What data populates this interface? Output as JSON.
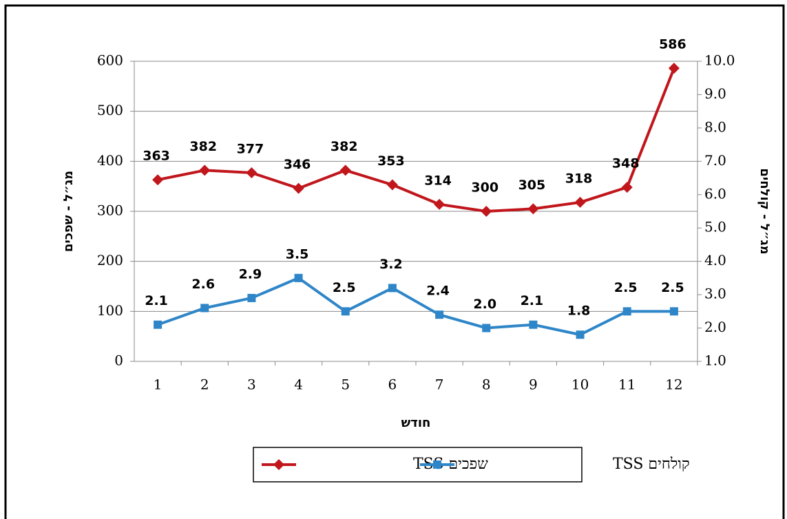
{
  "chart_data": {
    "type": "line",
    "x_label": "חודש",
    "y_label": "מג״ל - שפכים",
    "y2_label": "מג״ל - קולחים",
    "categories": [
      "1",
      "2",
      "3",
      "4",
      "5",
      "6",
      "7",
      "8",
      "9",
      "10",
      "11",
      "12"
    ],
    "ylim": [
      0,
      600
    ],
    "yticks": [
      0,
      100,
      200,
      300,
      400,
      500,
      600
    ],
    "y2lim": [
      1,
      10
    ],
    "y2ticks": [
      {
        "value": 1,
        "label": "1.0"
      },
      {
        "value": 2,
        "label": "2.0"
      },
      {
        "value": 3,
        "label": "3.0"
      },
      {
        "value": 4,
        "label": "4.0"
      },
      {
        "value": 5,
        "label": "5.0"
      },
      {
        "value": 6,
        "label": "6.0"
      },
      {
        "value": 7,
        "label": "7.0"
      },
      {
        "value": 8,
        "label": "8.0"
      },
      {
        "value": 9,
        "label": "9.0"
      },
      {
        "value": 10,
        "label": "10.0"
      }
    ],
    "grid": true,
    "series": [
      {
        "name": "שפכים TSS",
        "color": "#c0161c",
        "marker": "diamond",
        "values": [
          363,
          382,
          377,
          346,
          382,
          353,
          314,
          300,
          305,
          318,
          348,
          586
        ]
      },
      {
        "name": "קולחים TSS",
        "color": "#2e86c8",
        "marker": "square",
        "axis": "y2",
        "values": [
          2.1,
          2.6,
          2.9,
          3.5,
          2.5,
          3.2,
          2.4,
          2.0,
          2.1,
          1.8,
          2.5,
          2.5
        ],
        "value_labels": [
          "2.1",
          "2.6",
          "2.9",
          "3.5",
          "2.5",
          "3.2",
          "2.4",
          "2.0",
          "2.1",
          "1.8",
          "2.5",
          "2.5"
        ]
      }
    ]
  }
}
